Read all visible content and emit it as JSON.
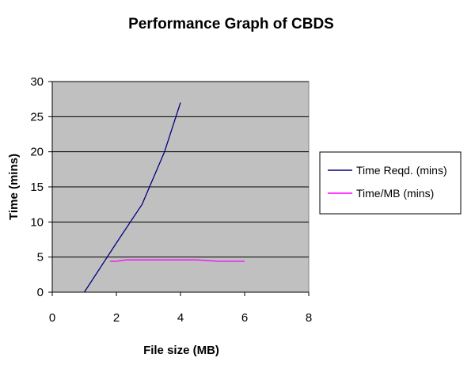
{
  "chart_data": {
    "type": "line",
    "title": "Performance Graph of CBDS",
    "xlabel": "File size (MB)",
    "ylabel": "Time (mins)",
    "xlim": [
      0,
      8
    ],
    "ylim": [
      0,
      30
    ],
    "xticks": [
      0,
      2,
      4,
      6,
      8
    ],
    "yticks": [
      0,
      5,
      10,
      15,
      20,
      25,
      30
    ],
    "grid": "horizontal",
    "plot_background": "#c0c0c0",
    "legend_position": "right",
    "series": [
      {
        "name": "Time Reqd. (mins)",
        "color": "#000080",
        "x": [
          1,
          2,
          2.8,
          3.5,
          4
        ],
        "y": [
          0,
          7,
          12.5,
          20,
          27
        ]
      },
      {
        "name": "Time/MB (mins)",
        "color": "#ff00ff",
        "x": [
          1.8,
          2,
          2.3,
          3,
          4.5,
          5.2,
          6
        ],
        "y": [
          4.4,
          4.4,
          4.6,
          4.6,
          4.6,
          4.4,
          4.4
        ]
      }
    ]
  }
}
